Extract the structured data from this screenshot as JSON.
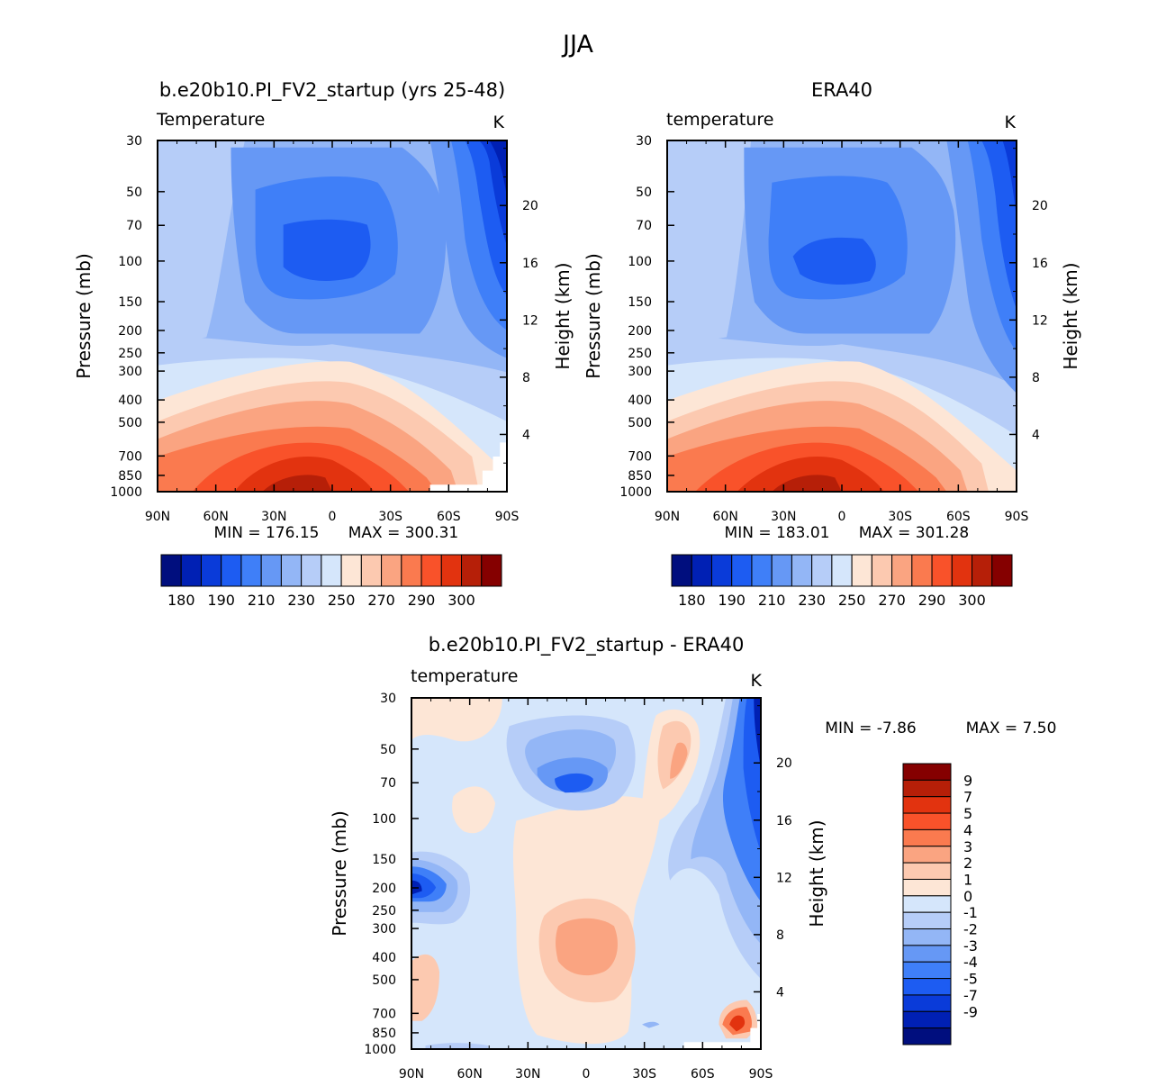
{
  "page_title": "JJA",
  "palettes": {
    "temperature": [
      "#000e7e",
      "#0020b4",
      "#0a3bd9",
      "#1d5cf2",
      "#3f7ff8",
      "#6698f5",
      "#93b6f6",
      "#b6cdf8",
      "#d5e6fb",
      "#fde6d6",
      "#fcc9b0",
      "#faa481",
      "#fa7a4f",
      "#f9522a",
      "#e2330f",
      "#b61f08",
      "#850000"
    ],
    "difference": [
      "#000e7e",
      "#0020b4",
      "#0a3bd9",
      "#1d5cf2",
      "#3f7ff8",
      "#6698f5",
      "#93b6f6",
      "#b6cdf8",
      "#d5e6fb",
      "#fde6d6",
      "#fcc9b0",
      "#faa481",
      "#fa7a4f",
      "#f9522a",
      "#e2330f",
      "#b61f08",
      "#850000"
    ]
  },
  "chart_data": [
    {
      "id": "model",
      "type": "heatmap",
      "title": "b.e20b10.PI_FV2_startup (yrs 25-48)",
      "subtitle_left": "Temperature",
      "units": "K",
      "xlabel": "",
      "ylabel": "Pressure (mb)",
      "ylabel_right": "Height (km)",
      "x_ticks": [
        "90N",
        "60N",
        "30N",
        "0",
        "30S",
        "60S",
        "90S"
      ],
      "x_range": [
        90,
        -90
      ],
      "y_ticks": [
        30,
        50,
        70,
        100,
        150,
        200,
        250,
        300,
        400,
        500,
        700,
        850,
        1000
      ],
      "y_range": [
        1000,
        30
      ],
      "height_ticks": [
        4,
        8,
        12,
        16,
        20
      ],
      "min_label": "MIN = 176.15",
      "max_label": "MAX = 300.31",
      "colorbar_labels": [
        "180",
        "190",
        "210",
        "230",
        "250",
        "270",
        "290",
        "300"
      ],
      "fields": {
        "T_surface": 299,
        "T_tropopause_min": 192,
        "T_south_pole_top": 178,
        "T_north_top": 228
      }
    },
    {
      "id": "obs",
      "type": "heatmap",
      "title": "ERA40",
      "subtitle_left": "temperature",
      "units": "K",
      "xlabel": "",
      "ylabel": "Pressure (mb)",
      "ylabel_right": "Height (km)",
      "x_ticks": [
        "90N",
        "60N",
        "30N",
        "0",
        "30S",
        "60S",
        "90S"
      ],
      "x_range": [
        90,
        -90
      ],
      "y_ticks": [
        30,
        50,
        70,
        100,
        150,
        200,
        250,
        300,
        400,
        500,
        700,
        850,
        1000
      ],
      "y_range": [
        1000,
        30
      ],
      "height_ticks": [
        4,
        8,
        12,
        16,
        20
      ],
      "min_label": "MIN = 183.01",
      "max_label": "MAX = 301.28",
      "colorbar_labels": [
        "180",
        "190",
        "210",
        "230",
        "250",
        "270",
        "290",
        "300"
      ],
      "fields": {
        "T_surface": 300,
        "T_tropopause_min": 196,
        "T_south_pole_top": 186,
        "T_north_top": 232
      }
    },
    {
      "id": "diff",
      "type": "heatmap",
      "title": "b.e20b10.PI_FV2_startup - ERA40",
      "subtitle_left": "temperature",
      "units": "K",
      "xlabel": "",
      "ylabel": "Pressure (mb)",
      "ylabel_right": "Height (km)",
      "x_ticks": [
        "90N",
        "60N",
        "30N",
        "0",
        "30S",
        "60S",
        "90S"
      ],
      "x_range": [
        90,
        -90
      ],
      "y_ticks": [
        30,
        50,
        70,
        100,
        150,
        200,
        250,
        300,
        400,
        500,
        700,
        850,
        1000
      ],
      "y_range": [
        1000,
        30
      ],
      "height_ticks": [
        4,
        8,
        12,
        16,
        20
      ],
      "min_label": "MIN = -7.86",
      "max_label": "MAX = 7.50",
      "colorbar_labels": [
        "9",
        "7",
        "5",
        "4",
        "3",
        "2",
        "1",
        "0",
        "-1",
        "-2",
        "-3",
        "-4",
        "-5",
        "-7",
        "-9"
      ],
      "features": [
        {
          "name": "tropical stratosphere cold bias",
          "lat": 5,
          "p": 65,
          "value": -5
        },
        {
          "name": "northern high-lat cold bias",
          "lat": 85,
          "p": 200,
          "value": -6
        },
        {
          "name": "southern high-lat cold bias",
          "lat": -80,
          "p": 60,
          "value": -4
        },
        {
          "name": "subtropical warm bias",
          "lat": 5,
          "p": 350,
          "value": 2
        },
        {
          "name": "southern stratosphere warm bias",
          "lat": -47,
          "p": 60,
          "value": 2
        },
        {
          "name": "antarctic surface warm bias",
          "lat": -77,
          "p": 800,
          "value": 7
        }
      ]
    }
  ]
}
